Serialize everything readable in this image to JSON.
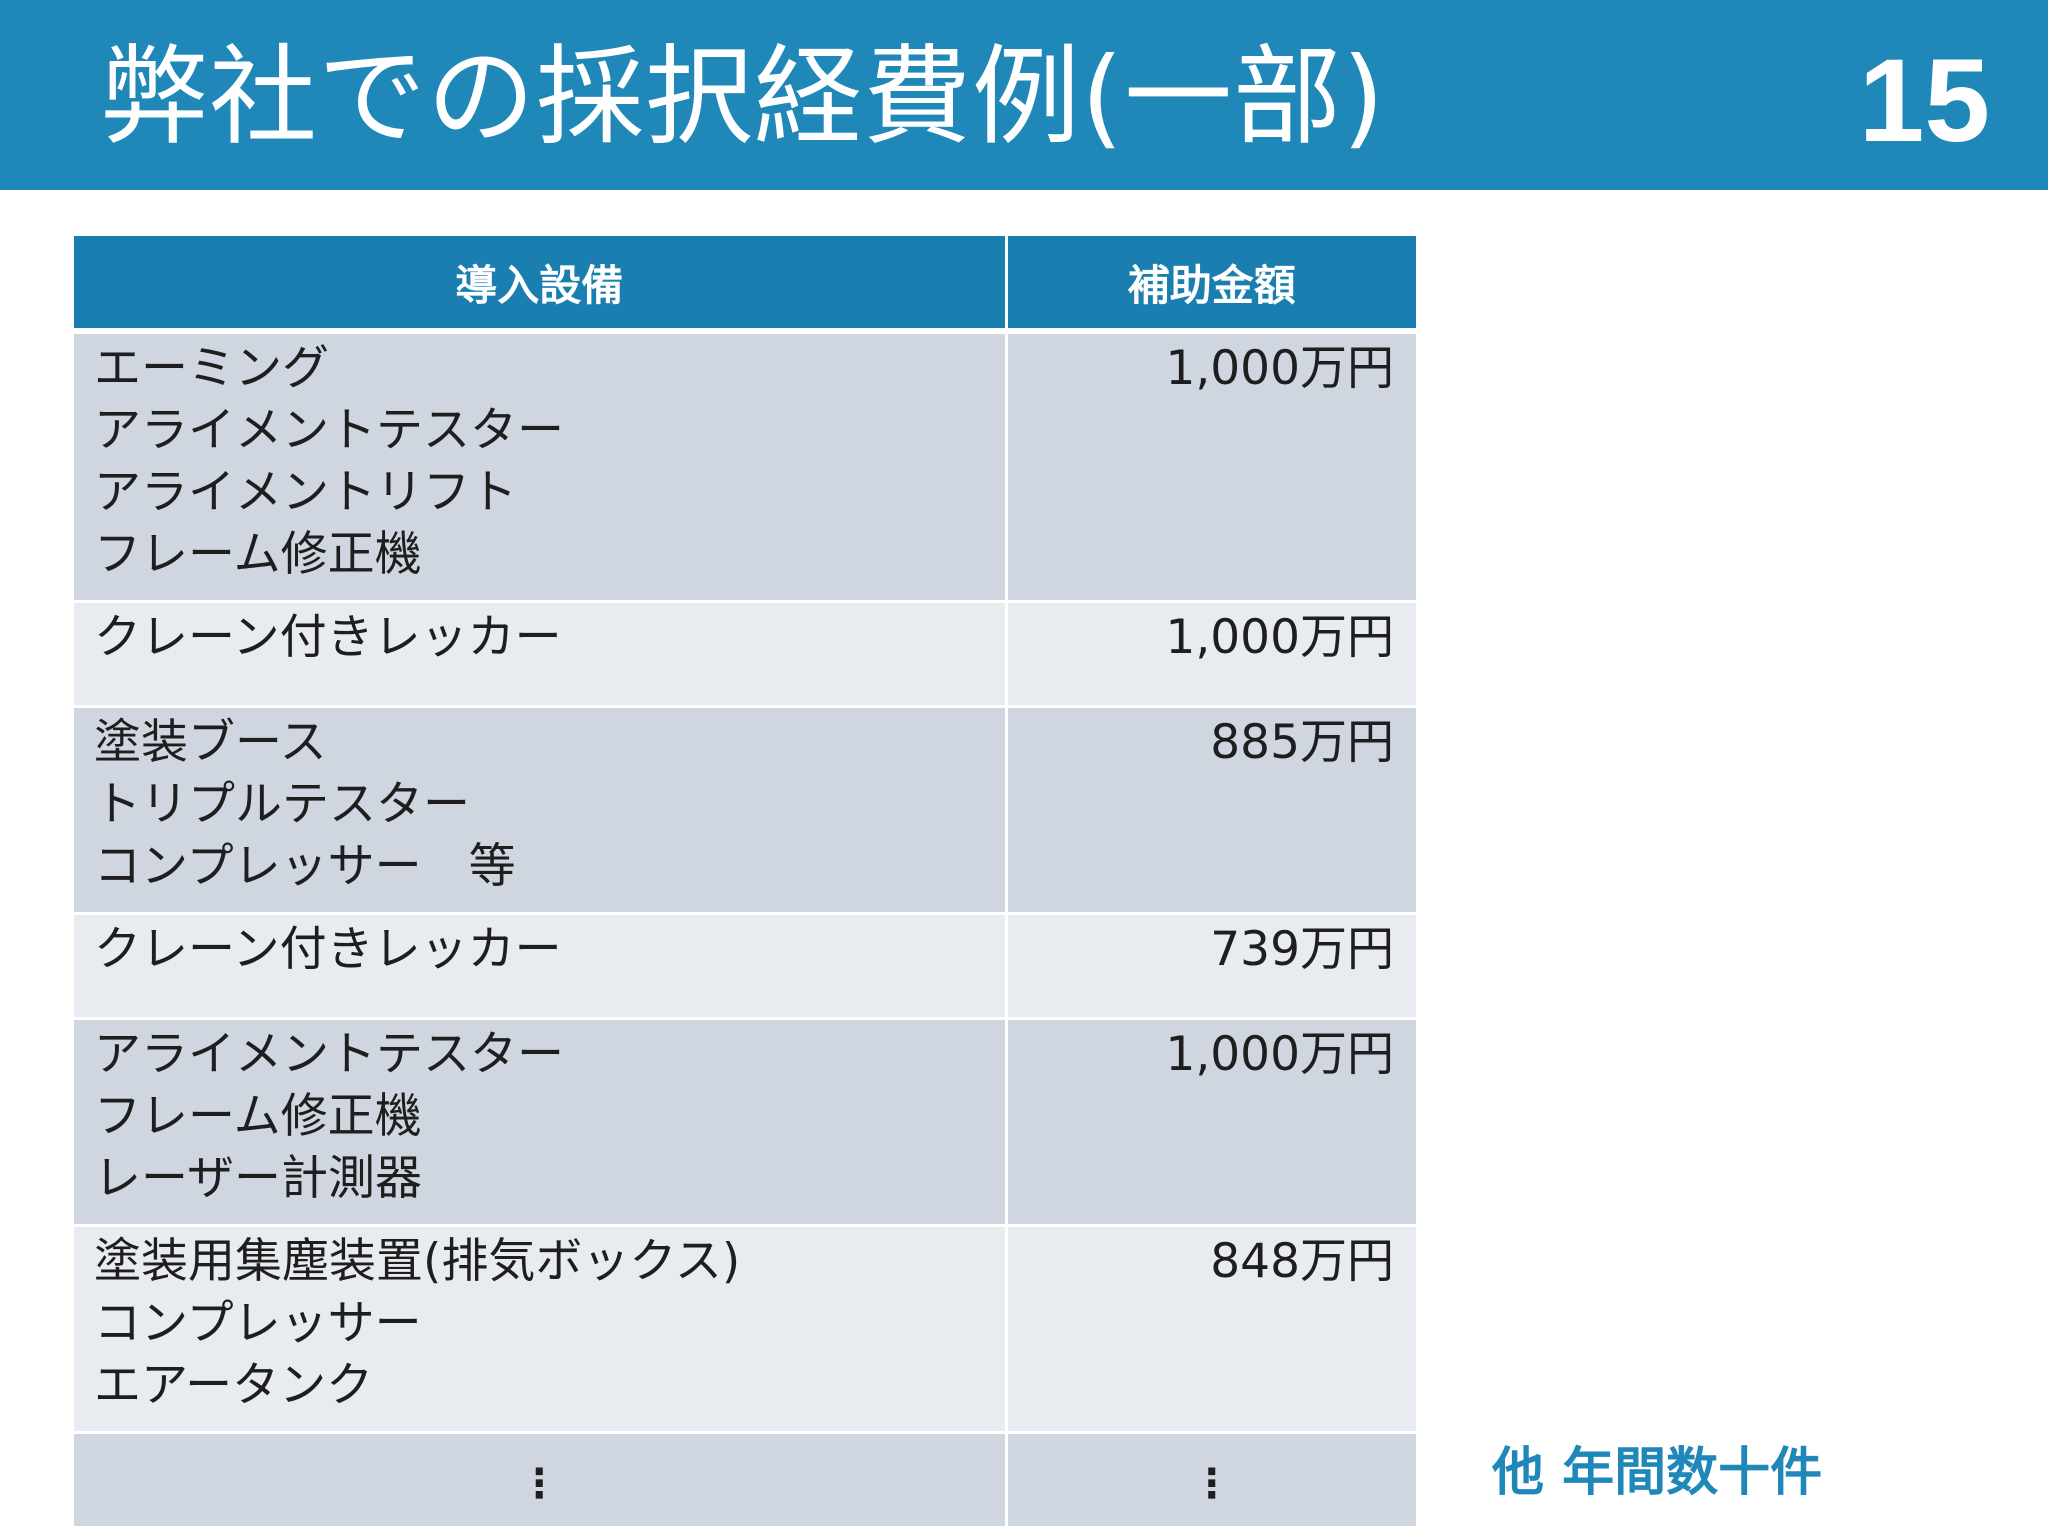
{
  "header": {
    "title": "弊社での採択経費例(一部)",
    "page_number": "15"
  },
  "table": {
    "headers": [
      "導入設備",
      "補助金額"
    ],
    "rows": [
      {
        "equipment": [
          "エーミング",
          "アライメントテスター",
          "アライメントリフト",
          "フレーム修正機"
        ],
        "amount": "1,000万円"
      },
      {
        "equipment": [
          "クレーン付きレッカー"
        ],
        "amount": "1,000万円"
      },
      {
        "equipment": [
          "塗装ブース",
          "トリプルテスター",
          "コンプレッサー　等"
        ],
        "amount": "885万円"
      },
      {
        "equipment": [
          "クレーン付きレッカー"
        ],
        "amount": "739万円"
      },
      {
        "equipment": [
          "アライメントテスター",
          "フレーム修正機",
          "レーザー計測器"
        ],
        "amount": "1,000万円"
      },
      {
        "equipment": [
          "塗装用集塵装置(排気ボックス)",
          "コンプレッサー",
          "エアータンク"
        ],
        "amount": "848万円"
      }
    ],
    "continuation": [
      "⋮",
      "⋮"
    ]
  },
  "footnote": "他 年間数十件",
  "colors": {
    "header_bar": "#1f88b8",
    "table_header": "#1a7fb0",
    "row_dark": "#cfd6e0",
    "row_light": "#e8ebef",
    "footnote": "#1f88b8"
  }
}
